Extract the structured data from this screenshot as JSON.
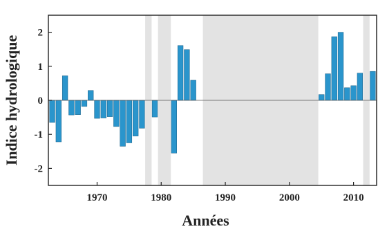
{
  "chart_data": {
    "type": "bar",
    "title": "",
    "xlabel": "Années",
    "ylabel": "Indice hydrologique",
    "xlim": [
      1962.4,
      2013.6
    ],
    "ylim": [
      -2.5,
      2.5
    ],
    "x_ticks": [
      1970,
      1980,
      1990,
      2000,
      2010
    ],
    "y_ticks": [
      -2,
      -1,
      0,
      1,
      2
    ],
    "x_tick_labels": [
      "1970",
      "1980",
      "1990",
      "2000",
      "2010"
    ],
    "y_tick_labels": [
      "-2",
      "-1",
      "0",
      "1",
      "2"
    ],
    "grid": false,
    "bar_color": "#2a95cc",
    "shade_color": "#e3e3e3",
    "missing_periods": [
      [
        1977.5,
        1978.5
      ],
      [
        1979.5,
        1981.5
      ],
      [
        1986.5,
        2004.5
      ],
      [
        2011.5,
        2012.5
      ],
      [
        2013.5,
        2013.6
      ]
    ],
    "series": [
      {
        "x": [
          1963,
          1964,
          1965,
          1966,
          1967,
          1968,
          1969,
          1970,
          1971,
          1972,
          1973,
          1974,
          1975,
          1976,
          1977,
          1979,
          1982,
          1983,
          1984,
          1985,
          1986,
          2005,
          2006,
          2007,
          2008,
          2009,
          2010,
          2011,
          2013
        ],
        "values": [
          -0.65,
          -1.22,
          0.72,
          -0.43,
          -0.42,
          -0.18,
          0.29,
          -0.53,
          -0.52,
          -0.48,
          -0.77,
          -1.35,
          -1.25,
          -1.05,
          -0.82,
          -0.49,
          -1.55,
          1.61,
          1.49,
          0.59,
          0.0,
          0.17,
          0.78,
          1.87,
          2.0,
          0.37,
          0.43,
          0.8,
          0.85
        ]
      }
    ]
  }
}
